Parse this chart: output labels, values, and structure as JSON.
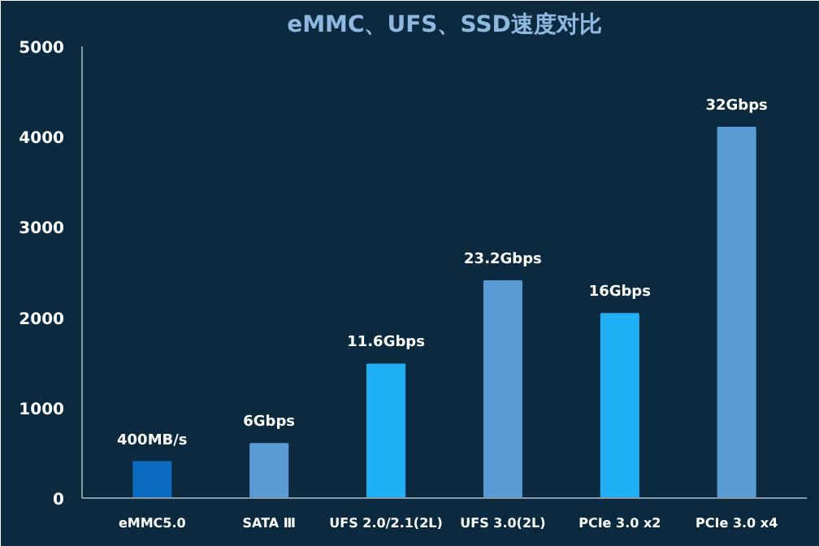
{
  "chart_data": {
    "type": "bar",
    "title": "eMMC、UFS、SSD速度对比",
    "categories": [
      "eMMC5.0",
      "SATA Ⅲ",
      "UFS 2.0/2.1(2L)",
      "UFS 3.0(2L)",
      "PCIe 3.0 x2",
      "PCIe 3.0 x4"
    ],
    "values": [
      400,
      600,
      1480,
      2400,
      2040,
      4100
    ],
    "colors": [
      "#0a6bc0",
      "#5b9bd5",
      "#1fb0f5",
      "#5b9bd5",
      "#1fb0f5",
      "#5b9bd5"
    ],
    "annotations": [
      {
        "text": "400MB/s",
        "x": "eMMC5.0",
        "y": 400
      },
      {
        "text": "6Gbps",
        "x": "SATA Ⅲ",
        "y": 600
      },
      {
        "text": "11.6Gbps",
        "x": "UFS 2.0/2.1(2L)",
        "y": 1480
      },
      {
        "text": "23.2Gbps",
        "x": "UFS 3.0(2L)",
        "y": 2400
      },
      {
        "text": "16Gbps",
        "x": "PCIe 3.0 x2",
        "y": 2040
      },
      {
        "text": "32Gbps",
        "x": "PCIe 3.0 x4",
        "y": 4100
      }
    ],
    "ylim": [
      0,
      5000
    ],
    "yticks": [
      0,
      1000,
      2000,
      3000,
      4000,
      5000
    ],
    "grid": false
  }
}
